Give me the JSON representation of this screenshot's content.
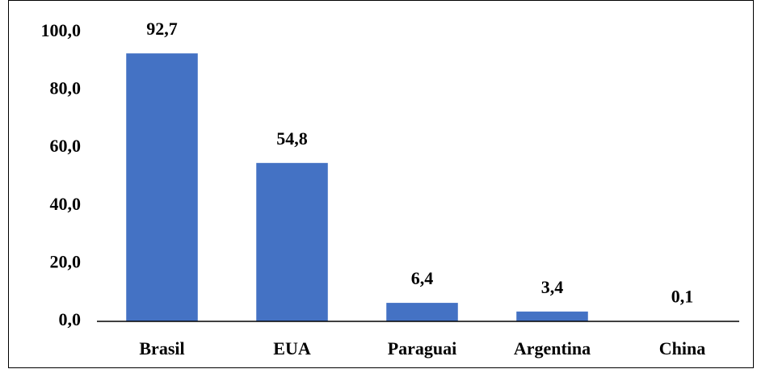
{
  "chart_data": {
    "type": "bar",
    "categories": [
      "Brasil",
      "EUA",
      "Paraguai",
      "Argentina",
      "China"
    ],
    "values": [
      92.7,
      54.8,
      6.4,
      3.4,
      0.1
    ],
    "value_labels": [
      "92,7",
      "54,8",
      "6,4",
      "3,4",
      "0,1"
    ],
    "color": "#4472c4",
    "ylim": [
      0,
      100
    ],
    "yticks": [
      {
        "value": 0,
        "label": "0,0"
      },
      {
        "value": 20,
        "label": "20,0"
      },
      {
        "value": 40,
        "label": "40,0"
      },
      {
        "value": 60,
        "label": "60,0"
      },
      {
        "value": 80,
        "label": "80,0"
      },
      {
        "value": 100,
        "label": "100,0"
      }
    ],
    "grid": false
  }
}
